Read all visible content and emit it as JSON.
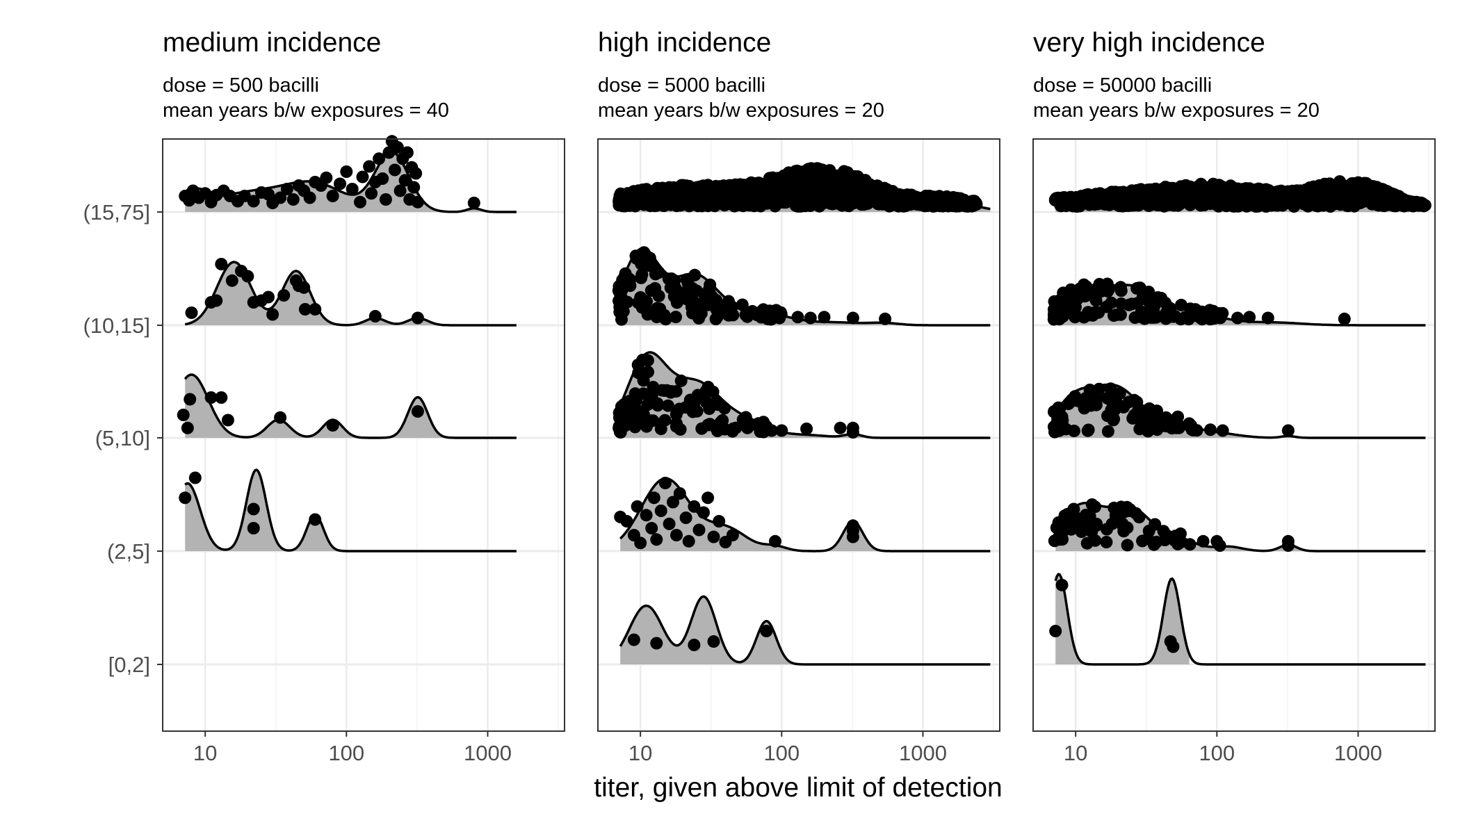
{
  "chart_data": {
    "type": "ridgeline",
    "xlabel": "titer, given above limit of detection",
    "ylabel": "",
    "x_scale": "log10",
    "xlim": [
      5,
      3500
    ],
    "x_ticks": [
      10,
      100,
      1000
    ],
    "x_tick_labels": [
      "10",
      "100",
      "1000"
    ],
    "categories": [
      "[0,2]",
      "(2,5]",
      "(5,10]",
      "(10,15]",
      "(15,75]"
    ],
    "grid": true,
    "panels": [
      {
        "title": "medium incidence",
        "subtitle_lines": [
          "dose = 500 bacilli",
          "mean years b/w exposures = 40"
        ],
        "x_max": 1600,
        "ridges": [
          {
            "category": "(2,5]",
            "modes": [
              [
                7.5,
                0.75,
                0.09
              ],
              [
                23,
                0.9,
                0.07
              ],
              [
                60,
                0.4,
                0.06
              ]
            ],
            "points": [
              [
                7.2,
                0.55
              ],
              [
                8.5,
                0.78
              ],
              [
                22,
                0.42
              ],
              [
                22,
                0.2
              ],
              [
                60,
                0.3
              ]
            ]
          },
          {
            "category": "(5,10]",
            "modes": [
              [
                8,
                0.7,
                0.12
              ],
              [
                33,
                0.2,
                0.08
              ],
              [
                80,
                0.2,
                0.07
              ],
              [
                320,
                0.45,
                0.07
              ]
            ],
            "points": [
              [
                7,
                0.2
              ],
              [
                7.5,
                0.05
              ],
              [
                7.8,
                0.38
              ],
              [
                11,
                0.4
              ],
              [
                13,
                0.4
              ],
              [
                14.5,
                0.14
              ],
              [
                34,
                0.17
              ],
              [
                80,
                0.08
              ],
              [
                320,
                0.24
              ]
            ]
          },
          {
            "category": "(10,15]",
            "modes": [
              [
                16,
                0.7,
                0.12
              ],
              [
                44,
                0.6,
                0.1
              ],
              [
                160,
                0.08,
                0.07
              ],
              [
                320,
                0.08,
                0.07
              ]
            ],
            "points": [
              [
                8,
                0.08
              ],
              [
                13,
                0.64
              ],
              [
                11,
                0.2
              ],
              [
                12,
                0.22
              ],
              [
                15.5,
                0.45
              ],
              [
                18,
                0.56
              ],
              [
                20,
                0.5
              ],
              [
                22,
                0.2
              ],
              [
                25,
                0.22
              ],
              [
                30,
                0.06
              ],
              [
                28,
                0.26
              ],
              [
                36,
                0.28
              ],
              [
                44,
                0.45
              ],
              [
                46,
                0.39
              ],
              [
                50,
                0.37
              ],
              [
                51,
                0.12
              ],
              [
                60,
                0.12
              ],
              [
                160,
                0.04
              ],
              [
                320,
                0.02
              ]
            ]
          },
          {
            "category": "(15,75]",
            "modes": [
              [
                8,
                0.2,
                0.12
              ],
              [
                20,
                0.2,
                0.25
              ],
              [
                60,
                0.3,
                0.22
              ],
              [
                210,
                0.65,
                0.12
              ],
              [
                800,
                0.04,
                0.05
              ]
            ],
            "points": [
              [
                7.2,
                0.12
              ],
              [
                7.7,
                0.07
              ],
              [
                8.2,
                0.18
              ],
              [
                9,
                0.1
              ],
              [
                10,
                0.15
              ],
              [
                11,
                0.05
              ],
              [
                12,
                0.13
              ],
              [
                13.5,
                0.18
              ],
              [
                15,
                0.12
              ],
              [
                17,
                0.06
              ],
              [
                19,
                0.12
              ],
              [
                22,
                0.06
              ],
              [
                25,
                0.16
              ],
              [
                28,
                0.14
              ],
              [
                30,
                0.04
              ],
              [
                34,
                0.1
              ],
              [
                38,
                0.2
              ],
              [
                42,
                0.08
              ],
              [
                46,
                0.24
              ],
              [
                50,
                0.18
              ],
              [
                55,
                0.1
              ],
              [
                60,
                0.28
              ],
              [
                66,
                0.24
              ],
              [
                72,
                0.33
              ],
              [
                80,
                0.12
              ],
              [
                90,
                0.26
              ],
              [
                100,
                0.4
              ],
              [
                110,
                0.2
              ],
              [
                125,
                0.05
              ],
              [
                130,
                0.34
              ],
              [
                145,
                0.46
              ],
              [
                150,
                0.15
              ],
              [
                160,
                0.28
              ],
              [
                170,
                0.55
              ],
              [
                180,
                0.32
              ],
              [
                190,
                0.08
              ],
              [
                200,
                0.62
              ],
              [
                210,
                0.75
              ],
              [
                220,
                0.42
              ],
              [
                230,
                0.68
              ],
              [
                240,
                0.18
              ],
              [
                250,
                0.55
              ],
              [
                260,
                0.3
              ],
              [
                270,
                0.62
              ],
              [
                280,
                0.08
              ],
              [
                290,
                0.45
              ],
              [
                300,
                0.22
              ],
              [
                310,
                0.38
              ],
              [
                320,
                0.05
              ],
              [
                800,
                0.04
              ]
            ]
          }
        ]
      },
      {
        "title": "high incidence",
        "subtitle_lines": [
          "dose = 5000 bacilli",
          "mean years b/w exposures = 20"
        ],
        "x_max": 3000,
        "ridges": [
          {
            "category": "[0,2]",
            "modes": [
              [
                11,
                0.65,
                0.12
              ],
              [
                28,
                0.75,
                0.09
              ],
              [
                78,
                0.48,
                0.07
              ]
            ],
            "points": [
              [
                9,
                0.22
              ],
              [
                13,
                0.18
              ],
              [
                24,
                0.16
              ],
              [
                33,
                0.2
              ],
              [
                78,
                0.32
              ]
            ]
          },
          {
            "category": "(2,5]",
            "modes": [
              [
                15,
                0.8,
                0.17
              ],
              [
                40,
                0.25,
                0.15
              ],
              [
                90,
                0.05,
                0.08
              ],
              [
                320,
                0.33,
                0.07
              ]
            ],
            "points": [
              [
                7.2,
                0.33
              ],
              [
                8,
                0.28
              ],
              [
                9,
                0.12
              ],
              [
                9.5,
                0.45
              ],
              [
                10,
                0.03
              ],
              [
                11,
                0.35
              ],
              [
                12,
                0.2
              ],
              [
                12.5,
                0.55
              ],
              [
                13,
                0.07
              ],
              [
                14,
                0.4
              ],
              [
                15,
                0.72
              ],
              [
                16,
                0.25
              ],
              [
                17,
                0.5
              ],
              [
                18,
                0.12
              ],
              [
                19,
                0.6
              ],
              [
                21,
                0.32
              ],
              [
                22,
                0.05
              ],
              [
                24,
                0.45
              ],
              [
                26,
                0.18
              ],
              [
                28,
                0.38
              ],
              [
                30,
                0.55
              ],
              [
                33,
                0.1
              ],
              [
                36,
                0.28
              ],
              [
                40,
                0.04
              ],
              [
                45,
                0.12
              ],
              [
                90,
                0.05
              ],
              [
                320,
                0.1
              ],
              [
                320,
                0.17
              ],
              [
                320,
                0.23
              ]
            ]
          },
          {
            "category": "(5,10]",
            "modes": [
              [
                11,
                0.85,
                0.14
              ],
              [
                25,
                0.6,
                0.18
              ],
              [
                60,
                0.15,
                0.15
              ],
              [
                150,
                0.03,
                0.15
              ],
              [
                320,
                0.04,
                0.06
              ]
            ],
            "points": "cloud:7-80:100:seed11",
            "extra_points": [
              [
                85,
                0.02
              ],
              [
                100,
                0.02
              ],
              [
                150,
                0.04
              ],
              [
                260,
                0.05
              ],
              [
                320,
                0.05
              ],
              [
                320,
                0.0
              ]
            ]
          },
          {
            "category": "(10,15]",
            "modes": [
              [
                10,
                0.8,
                0.13
              ],
              [
                24,
                0.55,
                0.17
              ],
              [
                70,
                0.14,
                0.2
              ],
              [
                250,
                0.03,
                0.2
              ],
              [
                540,
                0.02,
                0.1
              ]
            ],
            "points": "cloud:7-110:120:seed29",
            "extra_points": [
              [
                130,
                0.03
              ],
              [
                160,
                0.02
              ],
              [
                200,
                0.03
              ],
              [
                320,
                0.02
              ],
              [
                540,
                0.01
              ]
            ]
          },
          {
            "category": "(15,75]",
            "modes": [
              [
                20,
                0.25,
                0.45
              ],
              [
                200,
                0.45,
                0.35
              ],
              [
                1500,
                0.1,
                0.2
              ]
            ],
            "points": "band:7-2400:seed47"
          }
        ]
      },
      {
        "title": "very high incidence",
        "subtitle_lines": [
          "dose = 50000 bacilli",
          "mean years b/w exposures = 20"
        ],
        "x_max": 3000,
        "ridges": [
          {
            "category": "[0,2]",
            "modes": [
              [
                7.6,
                1.0,
                0.06
              ],
              [
                48,
                0.95,
                0.06
              ]
            ],
            "points": [
              [
                7.2,
                0.32
              ],
              [
                8,
                0.85
              ],
              [
                47,
                0.2
              ],
              [
                49,
                0.14
              ]
            ]
          },
          {
            "category": "(2,5]",
            "modes": [
              [
                11,
                0.5,
                0.16
              ],
              [
                25,
                0.45,
                0.15
              ],
              [
                55,
                0.12,
                0.12
              ],
              [
                120,
                0.05,
                0.1
              ],
              [
                320,
                0.07,
                0.06
              ]
            ],
            "points": "cloud:7-70:70:seed61",
            "extra_points": [
              [
                80,
                0.05
              ],
              [
                100,
                0.05
              ],
              [
                105,
                0.0
              ],
              [
                320,
                0.0
              ],
              [
                320,
                0.05
              ]
            ]
          },
          {
            "category": "(5,10]",
            "modes": [
              [
                10,
                0.45,
                0.15
              ],
              [
                20,
                0.5,
                0.15
              ],
              [
                45,
                0.2,
                0.15
              ],
              [
                100,
                0.05,
                0.15
              ],
              [
                320,
                0.02,
                0.05
              ]
            ],
            "points": "cloud:7-80:90:seed83",
            "extra_points": [
              [
                90,
                0.03
              ],
              [
                110,
                0.02
              ],
              [
                320,
                0.02
              ]
            ]
          },
          {
            "category": "(10,15]",
            "modes": [
              [
                10,
                0.35,
                0.18
              ],
              [
                25,
                0.4,
                0.2
              ],
              [
                70,
                0.12,
                0.2
              ],
              [
                250,
                0.03,
                0.2
              ]
            ],
            "points": "cloud:7-110:140:seed97",
            "extra_points": [
              [
                140,
                0.02
              ],
              [
                170,
                0.03
              ],
              [
                230,
                0.02
              ],
              [
                800,
                0.01
              ]
            ]
          },
          {
            "category": "(15,75]",
            "modes": [
              [
                20,
                0.15,
                0.5
              ],
              [
                120,
                0.22,
                0.4
              ],
              [
                900,
                0.3,
                0.25
              ]
            ],
            "points": "band:7-3000:seed131"
          }
        ]
      }
    ]
  }
}
